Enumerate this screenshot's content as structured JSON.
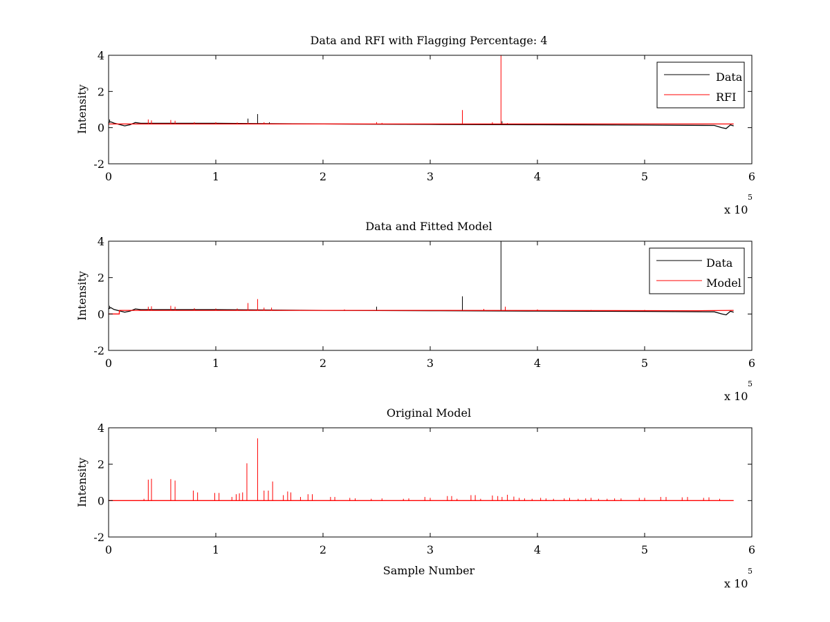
{
  "chart_data": [
    {
      "type": "line",
      "title": "Data and RFI with Flagging Percentage: 4",
      "xlabel": "",
      "ylabel": "Intensity",
      "xlim": [
        0,
        6
      ],
      "ylim": [
        -2,
        4
      ],
      "x_ticks": [
        "0",
        "1",
        "2",
        "3",
        "4",
        "5",
        "6"
      ],
      "y_ticks": [
        "4",
        "2",
        "0",
        "-2"
      ],
      "x_exponent": "x 10",
      "x_exponent_power": "5",
      "legend": {
        "position": "top-right",
        "entries": [
          "Data",
          "RFI"
        ]
      },
      "series": [
        {
          "name": "Data",
          "color": "#000000",
          "baseline": [
            [
              0,
              0.28
            ],
            [
              0.02,
              0.32
            ],
            [
              0.05,
              0.25
            ],
            [
              0.15,
              0.1
            ],
            [
              0.2,
              0.16
            ],
            [
              0.25,
              0.28
            ],
            [
              0.3,
              0.24
            ],
            [
              1.0,
              0.24
            ],
            [
              2.0,
              0.2
            ],
            [
              3.0,
              0.18
            ],
            [
              4.0,
              0.16
            ],
            [
              5.0,
              0.14
            ],
            [
              5.65,
              0.12
            ],
            [
              5.72,
              0.0
            ],
            [
              5.76,
              -0.05
            ],
            [
              5.8,
              0.15
            ],
            [
              5.83,
              0.1
            ]
          ],
          "spikes": [
            [
              0.01,
              0.45
            ],
            [
              1.3,
              0.5
            ],
            [
              1.39,
              0.75
            ],
            [
              1.5,
              0.3
            ],
            [
              2.5,
              0.3
            ],
            [
              3.3,
              0.35
            ],
            [
              3.67,
              0.35
            ]
          ]
        },
        {
          "name": "RFI",
          "color": "#ff0000",
          "baseline": [
            [
              0,
              0.2
            ],
            [
              5.83,
              0.2
            ]
          ],
          "spikes": [
            [
              0.37,
              0.45
            ],
            [
              0.4,
              0.4
            ],
            [
              0.58,
              0.42
            ],
            [
              0.62,
              0.38
            ],
            [
              0.8,
              0.3
            ],
            [
              1.0,
              0.3
            ],
            [
              1.2,
              0.28
            ],
            [
              1.3,
              0.28
            ],
            [
              1.45,
              0.3
            ],
            [
              2.5,
              0.3
            ],
            [
              2.55,
              0.26
            ],
            [
              3.3,
              0.97
            ],
            [
              3.58,
              0.3
            ],
            [
              3.66,
              4.0
            ],
            [
              3.72,
              0.25
            ]
          ]
        }
      ]
    },
    {
      "type": "line",
      "title": "Data and Fitted Model",
      "xlabel": "",
      "ylabel": "Intensity",
      "xlim": [
        0,
        6
      ],
      "ylim": [
        -2,
        4
      ],
      "x_ticks": [
        "0",
        "1",
        "2",
        "3",
        "4",
        "5",
        "6"
      ],
      "y_ticks": [
        "4",
        "2",
        "0",
        "-2"
      ],
      "x_exponent": "x 10",
      "x_exponent_power": "5",
      "legend": {
        "position": "top-right",
        "entries": [
          "Data",
          "Model"
        ]
      },
      "series": [
        {
          "name": "Data",
          "color": "#000000",
          "baseline": [
            [
              0,
              0.28
            ],
            [
              0.02,
              0.35
            ],
            [
              0.05,
              0.25
            ],
            [
              0.15,
              0.1
            ],
            [
              0.2,
              0.16
            ],
            [
              0.25,
              0.28
            ],
            [
              0.3,
              0.24
            ],
            [
              1.0,
              0.24
            ],
            [
              2.0,
              0.2
            ],
            [
              3.0,
              0.18
            ],
            [
              4.0,
              0.16
            ],
            [
              5.0,
              0.14
            ],
            [
              5.65,
              0.12
            ],
            [
              5.72,
              0.0
            ],
            [
              5.76,
              -0.05
            ],
            [
              5.8,
              0.15
            ],
            [
              5.83,
              0.1
            ]
          ],
          "spikes": [
            [
              0.01,
              0.45
            ],
            [
              2.5,
              0.4
            ],
            [
              3.3,
              0.97
            ],
            [
              3.66,
              4.0
            ]
          ]
        },
        {
          "name": "Model",
          "color": "#ff0000",
          "baseline": [
            [
              0,
              0.0
            ],
            [
              0.1,
              0.0
            ],
            [
              0.1,
              0.2
            ],
            [
              3.0,
              0.2
            ],
            [
              5.5,
              0.18
            ],
            [
              5.83,
              0.2
            ]
          ],
          "spikes": [
            [
              0.37,
              0.4
            ],
            [
              0.4,
              0.42
            ],
            [
              0.58,
              0.45
            ],
            [
              0.62,
              0.4
            ],
            [
              0.8,
              0.32
            ],
            [
              1.0,
              0.3
            ],
            [
              1.2,
              0.3
            ],
            [
              1.3,
              0.6
            ],
            [
              1.39,
              0.82
            ],
            [
              1.45,
              0.35
            ],
            [
              1.52,
              0.35
            ],
            [
              2.2,
              0.25
            ],
            [
              3.5,
              0.28
            ],
            [
              3.7,
              0.4
            ],
            [
              4.0,
              0.25
            ],
            [
              4.5,
              0.22
            ],
            [
              5.0,
              0.22
            ],
            [
              5.5,
              0.2
            ]
          ]
        }
      ]
    },
    {
      "type": "line",
      "title": "Original Model",
      "xlabel": "Sample Number",
      "ylabel": "Intensity",
      "xlim": [
        0,
        6
      ],
      "ylim": [
        -2,
        4
      ],
      "x_ticks": [
        "0",
        "1",
        "2",
        "3",
        "4",
        "5",
        "6"
      ],
      "y_ticks": [
        "4",
        "2",
        "0",
        "-2"
      ],
      "x_exponent": "x 10",
      "x_exponent_power": "5",
      "series": [
        {
          "name": "",
          "color": "#ff0000",
          "baseline": [
            [
              0,
              0.0
            ],
            [
              5.83,
              0.0
            ]
          ],
          "spikes": [
            [
              0.33,
              0.1
            ],
            [
              0.37,
              1.15
            ],
            [
              0.4,
              1.2
            ],
            [
              0.58,
              1.18
            ],
            [
              0.62,
              1.1
            ],
            [
              0.79,
              0.55
            ],
            [
              0.83,
              0.45
            ],
            [
              0.99,
              0.42
            ],
            [
              1.03,
              0.42
            ],
            [
              1.15,
              0.2
            ],
            [
              1.19,
              0.35
            ],
            [
              1.22,
              0.4
            ],
            [
              1.25,
              0.45
            ],
            [
              1.29,
              2.05
            ],
            [
              1.39,
              3.42
            ],
            [
              1.45,
              0.55
            ],
            [
              1.49,
              0.55
            ],
            [
              1.53,
              1.05
            ],
            [
              1.63,
              0.3
            ],
            [
              1.67,
              0.5
            ],
            [
              1.7,
              0.45
            ],
            [
              1.79,
              0.2
            ],
            [
              1.86,
              0.35
            ],
            [
              1.9,
              0.35
            ],
            [
              2.07,
              0.2
            ],
            [
              2.11,
              0.2
            ],
            [
              2.25,
              0.15
            ],
            [
              2.3,
              0.12
            ],
            [
              2.45,
              0.1
            ],
            [
              2.55,
              0.12
            ],
            [
              2.75,
              0.1
            ],
            [
              2.8,
              0.12
            ],
            [
              2.95,
              0.2
            ],
            [
              3.0,
              0.15
            ],
            [
              3.16,
              0.25
            ],
            [
              3.2,
              0.25
            ],
            [
              3.25,
              0.1
            ],
            [
              3.38,
              0.3
            ],
            [
              3.42,
              0.3
            ],
            [
              3.47,
              0.1
            ],
            [
              3.58,
              0.28
            ],
            [
              3.63,
              0.25
            ],
            [
              3.67,
              0.2
            ],
            [
              3.72,
              0.32
            ],
            [
              3.78,
              0.22
            ],
            [
              3.83,
              0.15
            ],
            [
              3.88,
              0.12
            ],
            [
              3.95,
              0.1
            ],
            [
              4.03,
              0.15
            ],
            [
              4.08,
              0.12
            ],
            [
              4.15,
              0.1
            ],
            [
              4.25,
              0.12
            ],
            [
              4.3,
              0.15
            ],
            [
              4.38,
              0.1
            ],
            [
              4.45,
              0.12
            ],
            [
              4.5,
              0.15
            ],
            [
              4.57,
              0.1
            ],
            [
              4.65,
              0.1
            ],
            [
              4.72,
              0.12
            ],
            [
              4.78,
              0.12
            ],
            [
              4.95,
              0.15
            ],
            [
              5.0,
              0.15
            ],
            [
              5.15,
              0.2
            ],
            [
              5.2,
              0.2
            ],
            [
              5.35,
              0.18
            ],
            [
              5.4,
              0.2
            ],
            [
              5.55,
              0.15
            ],
            [
              5.6,
              0.18
            ],
            [
              5.7,
              0.1
            ]
          ]
        }
      ]
    }
  ]
}
